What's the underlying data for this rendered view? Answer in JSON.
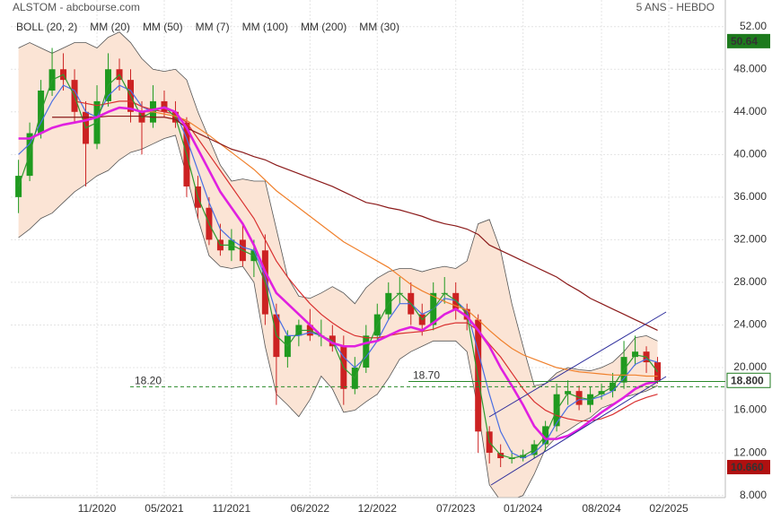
{
  "chart_data": {
    "type": "candlestick",
    "title": "ALSTOM - abcbourse.com",
    "subtitle": "5 ANS - HEBDO",
    "x": [
      "2020-04",
      "2020-05",
      "2020-06",
      "2020-07",
      "2020-08",
      "2020-09",
      "2020-10",
      "2020-11",
      "2020-12",
      "2021-01",
      "2021-02",
      "2021-03",
      "2021-04",
      "2021-05",
      "2021-06",
      "2021-07",
      "2021-08",
      "2021-09",
      "2021-10",
      "2021-11",
      "2021-12",
      "2022-01",
      "2022-02",
      "2022-03",
      "2022-04",
      "2022-05",
      "2022-06",
      "2022-07",
      "2022-08",
      "2022-09",
      "2022-10",
      "2022-11",
      "2022-12",
      "2023-01",
      "2023-02",
      "2023-03",
      "2023-04",
      "2023-05",
      "2023-06",
      "2023-07",
      "2023-08",
      "2023-09",
      "2023-10",
      "2023-11",
      "2023-12",
      "2024-01",
      "2024-02",
      "2024-03",
      "2024-04",
      "2024-05",
      "2024-06",
      "2024-07",
      "2024-08",
      "2024-09",
      "2024-10",
      "2024-11",
      "2024-12",
      "2025-01"
    ],
    "open": [
      36,
      38,
      42,
      46,
      48,
      47,
      44,
      41,
      45,
      48,
      47,
      44,
      43,
      45,
      44,
      43,
      37,
      35,
      32,
      31,
      32,
      30,
      31,
      25,
      21,
      23,
      24,
      23,
      23,
      22,
      18,
      20,
      23,
      25,
      27,
      27,
      25,
      24,
      27,
      27,
      25.5,
      24.5,
      14,
      12,
      11.5,
      11.5,
      11.8,
      12.8,
      14.5,
      17.5,
      17.8,
      16.5,
      17.5,
      17.8,
      18.6,
      21,
      21.5,
      20.5
    ],
    "high": [
      39.5,
      43,
      47,
      50,
      49.5,
      48,
      45,
      46.5,
      49.5,
      49,
      48,
      45,
      46.5,
      46,
      45,
      43.5,
      38,
      36,
      33.5,
      33,
      33.5,
      32,
      32.5,
      26,
      23.5,
      24.5,
      25.5,
      24.5,
      24,
      23,
      21,
      24,
      26,
      28,
      28.5,
      28,
      26,
      28,
      28.5,
      28,
      26,
      25,
      14.5,
      12.8,
      12.2,
      12.3,
      13.2,
      15,
      18.5,
      18.8,
      18.3,
      18.2,
      18.5,
      19.5,
      22.5,
      23,
      22,
      21
    ],
    "low": [
      34.5,
      37.5,
      41.5,
      45.5,
      46,
      43,
      37,
      40.5,
      44.5,
      46,
      43,
      40,
      42.5,
      43.5,
      42.5,
      36,
      34,
      31.5,
      30.5,
      30,
      29.5,
      28.5,
      24,
      16.5,
      20,
      22,
      22.5,
      22,
      21.5,
      16.5,
      17.5,
      19.5,
      22.5,
      24.5,
      26,
      24,
      23,
      23.5,
      26,
      24.5,
      23.5,
      12,
      11,
      10.66,
      11,
      11.2,
      11.5,
      12.2,
      14,
      16.5,
      16,
      15.8,
      17,
      17.2,
      18,
      20.2,
      19.5,
      18.5
    ],
    "close": [
      38,
      42,
      46,
      48,
      47,
      44,
      41,
      45,
      48,
      47,
      44,
      43,
      45,
      44,
      43,
      37,
      35,
      32,
      31,
      32,
      30,
      31,
      25,
      21,
      23,
      24,
      23,
      23,
      22,
      18,
      20,
      23,
      25,
      27,
      27,
      25,
      24,
      27,
      27,
      25.5,
      24.5,
      14,
      12,
      11.5,
      11.5,
      11.8,
      12.8,
      14.5,
      17.5,
      17.8,
      16.5,
      17.5,
      17.8,
      18.6,
      21,
      21.5,
      20.5,
      18.8
    ],
    "up_color": "#1f9a1f",
    "down_color": "#cc2222",
    "bollinger": {
      "name": "BOLL (20, 2)",
      "color": "#555555",
      "fill": "#fbe4d5",
      "upper": [
        50,
        50.5,
        50,
        49.5,
        50,
        50.5,
        50.5,
        50,
        51,
        51.5,
        50.5,
        49,
        48,
        47.8,
        48,
        47,
        44,
        41.5,
        39,
        37.5,
        37.7,
        37.5,
        37.5,
        33,
        28.5,
        26.7,
        26.5,
        27,
        27.6,
        27,
        26,
        27.5,
        28.4,
        29,
        29.3,
        29.3,
        29,
        29.3,
        29.5,
        29.3,
        30,
        33.5,
        33.9,
        31,
        26,
        22,
        18.3,
        18.5,
        19.5,
        20,
        19.8,
        19.7,
        20,
        20.5,
        21.5,
        22.8,
        23,
        22.5
      ],
      "lower": [
        32.2,
        33,
        34,
        34.5,
        35.5,
        36.5,
        37.2,
        38,
        38.5,
        39.5,
        40.2,
        40.5,
        41,
        41.5,
        41.8,
        38,
        34,
        30.5,
        29.5,
        29.3,
        29.5,
        28,
        22,
        17.5,
        16.5,
        15.4,
        17,
        19.2,
        18,
        15.8,
        16,
        16.8,
        17.5,
        19,
        20.8,
        21.5,
        22,
        22.5,
        22.5,
        22.5,
        21.5,
        16,
        9,
        7.5,
        7.6,
        8,
        10,
        12.4,
        13.5,
        14.1,
        14.8,
        15.3,
        16.2,
        16.6,
        17.2,
        17.5,
        17.8,
        18.3
      ]
    },
    "series": [
      {
        "name": "MM (20)",
        "color": "#4a6fe3",
        "width": 1.2,
        "values": [
          40,
          41,
          43,
          45,
          46.5,
          46,
          44,
          43.5,
          45.5,
          46.5,
          46,
          44.5,
          44,
          44.5,
          44,
          41.5,
          38.5,
          35.5,
          33,
          32,
          31.3,
          31,
          28.5,
          25,
          23,
          23,
          23.3,
          23,
          22.5,
          21,
          20,
          21,
          22.5,
          24.5,
          26,
          26,
          25,
          25.5,
          26.5,
          26.3,
          25.3,
          21.5,
          17.5,
          14,
          12,
          11.5,
          12,
          13,
          14.8,
          16.3,
          17,
          17,
          17.3,
          17.8,
          19,
          20.3,
          20.8,
          20.5
        ]
      },
      {
        "name": "MM (50)",
        "color": "#d93030",
        "width": 1.2,
        "values": [
          null,
          null,
          null,
          null,
          null,
          45,
          44.8,
          44.6,
          44.8,
          45,
          45,
          44.5,
          44.2,
          44,
          43.8,
          43,
          41.5,
          40,
          38.5,
          37,
          35.5,
          34,
          32,
          30,
          28.5,
          27.2,
          26,
          25,
          24.2,
          23.5,
          23,
          22.8,
          22.8,
          23,
          23.2,
          23.3,
          23.4,
          23.6,
          24,
          24.2,
          24.2,
          23.5,
          22.2,
          21,
          19.5,
          18,
          16.8,
          16,
          15.5,
          15.2,
          15,
          15,
          15.2,
          15.6,
          16.2,
          16.8,
          17.2,
          17.5
        ]
      },
      {
        "name": "MM (7)",
        "color": "#2e9a2e",
        "width": 1.2,
        "values": [
          37,
          40,
          44,
          47,
          47.5,
          45.5,
          42.5,
          43,
          46.5,
          47.5,
          45.5,
          43.5,
          44,
          44.5,
          43.5,
          40,
          36,
          33.5,
          31.5,
          31.5,
          31,
          30.5,
          28,
          23,
          22,
          23.5,
          23.5,
          23,
          22.5,
          20,
          19,
          21.5,
          24,
          26,
          27,
          26,
          24.5,
          25.5,
          27,
          26.3,
          25,
          19,
          13,
          11.8,
          11.5,
          11.7,
          12.3,
          13.6,
          16,
          17.6,
          17.2,
          17,
          17.6,
          18.2,
          19.8,
          21.2,
          21,
          19.6
        ]
      },
      {
        "name": "MM (100)",
        "color": "#f0802c",
        "width": 1.2,
        "values": [
          null,
          null,
          null,
          null,
          null,
          null,
          null,
          null,
          null,
          null,
          null,
          44,
          44,
          43.8,
          43.6,
          43.2,
          42.5,
          41.8,
          41,
          40.2,
          39.4,
          38.6,
          37.6,
          36.6,
          35.8,
          35,
          34.2,
          33.4,
          32.6,
          31.8,
          31.2,
          30.6,
          30,
          29.4,
          28.6,
          27.8,
          27.2,
          26.7,
          26.2,
          25.8,
          25.4,
          24.5,
          23.5,
          22.6,
          21.8,
          21.2,
          20.8,
          20.4,
          20,
          19.8,
          19.6,
          19.5,
          19.4,
          19.3,
          19.3,
          19.3,
          19.2,
          19.2
        ]
      },
      {
        "name": "MM (200)",
        "color": "#8b1a1a",
        "width": 1.2,
        "values": [
          null,
          null,
          null,
          43.5,
          43.5,
          43.5,
          43.5,
          43.5,
          43.6,
          43.6,
          43.6,
          43.6,
          43.5,
          43.5,
          43.3,
          42.5,
          42,
          41.5,
          41,
          40.5,
          40.2,
          39.8,
          39.5,
          39,
          38.6,
          38.2,
          37.8,
          37.4,
          37,
          36.5,
          36,
          35.5,
          35.3,
          35,
          34.8,
          34.5,
          34.2,
          33.8,
          33.5,
          33.3,
          33,
          32.5,
          31.5,
          31,
          30.5,
          30,
          29.5,
          29,
          28.5,
          27.8,
          27.2,
          26.5,
          26,
          25.5,
          25,
          24.5,
          24,
          23.5
        ]
      },
      {
        "name": "MM (30)",
        "color": "#e020e0",
        "width": 2.6,
        "values": [
          41.5,
          41.5,
          42,
          42.5,
          42.8,
          43,
          43.2,
          43.5,
          44,
          44.4,
          44.3,
          44,
          44.2,
          44.4,
          44,
          42.5,
          40.5,
          38.5,
          36.5,
          35,
          33.5,
          31.5,
          29,
          27,
          26,
          25,
          24,
          23,
          22.3,
          22,
          22,
          22.3,
          22.5,
          23,
          23.5,
          23.8,
          23.5,
          24.2,
          25,
          25.5,
          24.8,
          23.5,
          22,
          20,
          18.3,
          16.5,
          14.5,
          13.3,
          13.3,
          13.6,
          14.2,
          15,
          15.8,
          16.5,
          17.2,
          18,
          18.5,
          18.7
        ]
      }
    ],
    "ylim": [
      7.8,
      54.5
    ],
    "yticks": [
      {
        "value": 52,
        "label": "52.00"
      },
      {
        "value": 48,
        "label": "48.000"
      },
      {
        "value": 44,
        "label": "44.000"
      },
      {
        "value": 40,
        "label": "40.000"
      },
      {
        "value": 36,
        "label": "36.000"
      },
      {
        "value": 32,
        "label": "32.000"
      },
      {
        "value": 28,
        "label": "28.000"
      },
      {
        "value": 24,
        "label": "24.000"
      },
      {
        "value": 20,
        "label": "20.000"
      },
      {
        "value": 16,
        "label": "16.000"
      },
      {
        "value": 12,
        "label": "12.000"
      },
      {
        "value": 8,
        "label": "8.000"
      }
    ],
    "xticks": [
      {
        "value": "2020-11",
        "label": "11/2020"
      },
      {
        "value": "2021-05",
        "label": "05/2021"
      },
      {
        "value": "2021-11",
        "label": "11/2021"
      },
      {
        "value": "2022-06",
        "label": "06/2022"
      },
      {
        "value": "2022-12",
        "label": "12/2022"
      },
      {
        "value": "2023-07",
        "label": "07/2023"
      },
      {
        "value": "2024-01",
        "label": "01/2024"
      },
      {
        "value": "2024-08",
        "label": "08/2024"
      },
      {
        "value": "2025-02",
        "label": "02/2025"
      }
    ],
    "grid": true,
    "levels": [
      {
        "value": 18.2,
        "label": "18.20",
        "color": "#2a8a2a",
        "dash": true
      },
      {
        "value": 18.7,
        "label": "18.70",
        "color": "#2a8a2a",
        "dash": false
      }
    ],
    "price_tags": [
      {
        "value": 50.64,
        "label": "50.64",
        "bg": "#1d7a1d",
        "fg": "#ffffff"
      },
      {
        "value": 18.8,
        "label": "18.800",
        "bg": "#ffffff",
        "fg": "#000000"
      },
      {
        "value": 10.66,
        "label": "10.660",
        "bg": "#b01010",
        "fg": "#ffffff"
      }
    ]
  }
}
